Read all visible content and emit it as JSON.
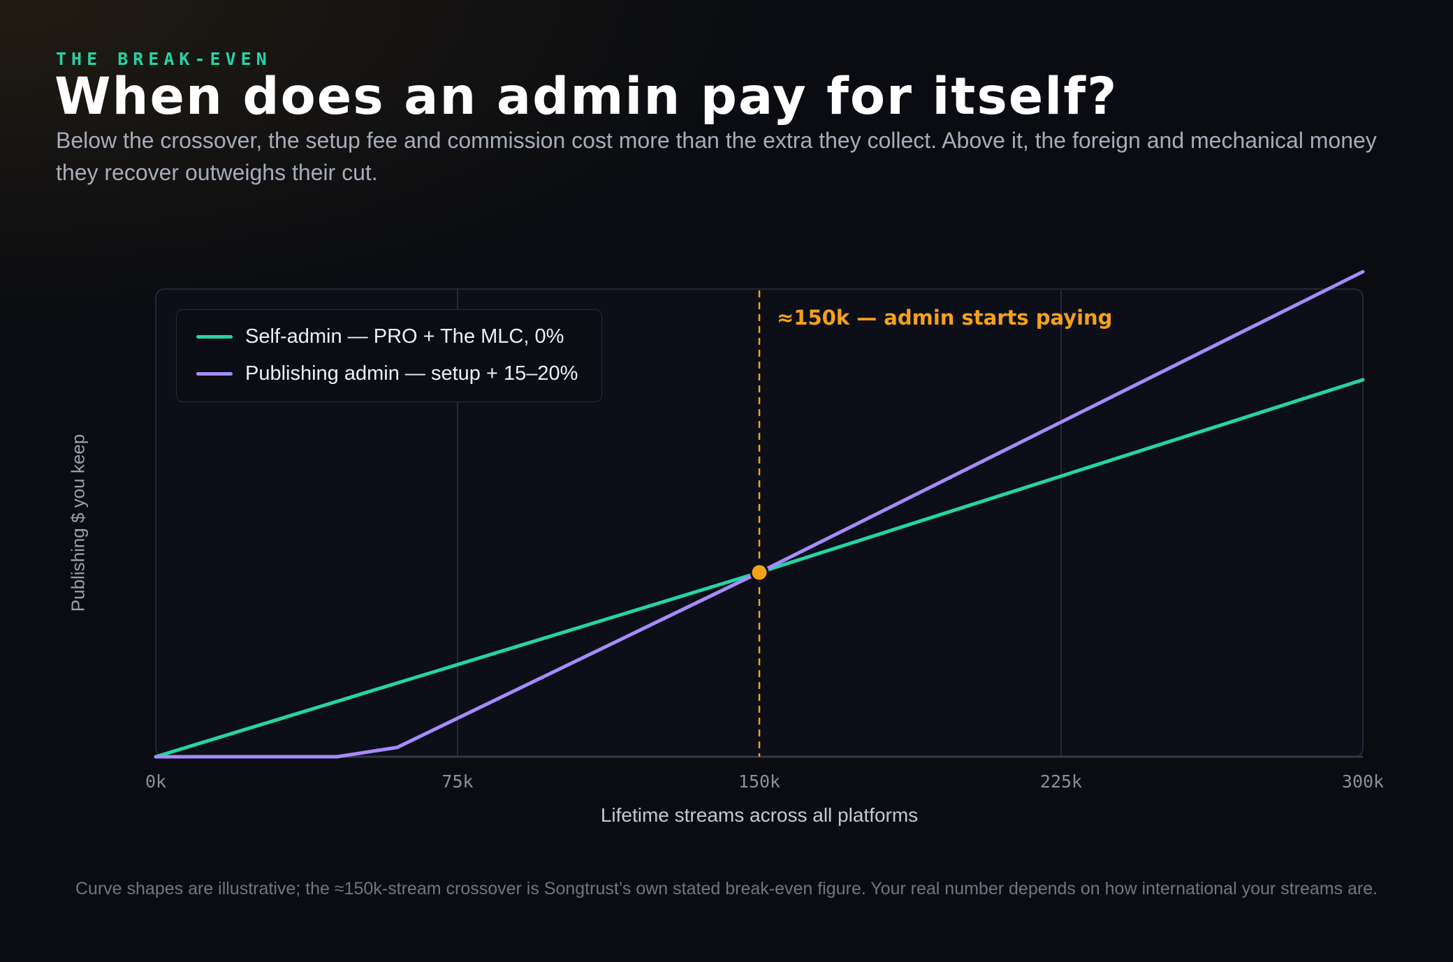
{
  "eyebrow": "THE BREAK-EVEN",
  "title": "When does an admin pay for itself?",
  "subtitle": "Below the crossover, the setup fee and commission cost more than the extra they collect. Above it, the foreign and mechanical money they recover outweighs their cut.",
  "footnote": "Curve shapes are illustrative; the ≈150k-stream crossover is Songtrust’s own stated break-even figure. Your real number depends on how international your streams are.",
  "colors": {
    "self_admin": "#26d3a7",
    "publishing_admin": "#a78bfa",
    "crossover": "#f5a11a",
    "background": "#0a0c11",
    "plot_background": "#0c0f18"
  },
  "chart_data": {
    "type": "line",
    "title": "When does an admin pay for itself?",
    "xlabel": "Lifetime streams across all platforms",
    "ylabel": "Publishing $ you keep",
    "xlim": [
      0,
      300000
    ],
    "ylim": [
      0,
      100
    ],
    "x_ticks": [
      0,
      75000,
      150000,
      225000,
      300000
    ],
    "x_tick_labels": [
      "0k",
      "75k",
      "150k",
      "225k",
      "300k"
    ],
    "y_tick_labels": [],
    "grid": "vertical",
    "legend_position": "top-left",
    "series": [
      {
        "name": "Self-admin — PRO + The MLC, 0%",
        "color": "#26d3a7",
        "x": [
          0,
          150000,
          300000
        ],
        "y": [
          0,
          39.4,
          80.6
        ]
      },
      {
        "name": "Publishing admin — setup + 15–20%",
        "color": "#a78bfa",
        "x": [
          0,
          45000,
          60000,
          150000,
          300000
        ],
        "y": [
          0,
          0,
          2,
          39.4,
          103.7
        ]
      }
    ],
    "annotations": [
      {
        "type": "vline",
        "x": 150000,
        "label": "≈150k — admin starts paying",
        "color": "#f5a11a",
        "style": "dashed"
      },
      {
        "type": "point",
        "x": 150000,
        "y": 39.4,
        "color": "#f5a11a"
      }
    ]
  }
}
